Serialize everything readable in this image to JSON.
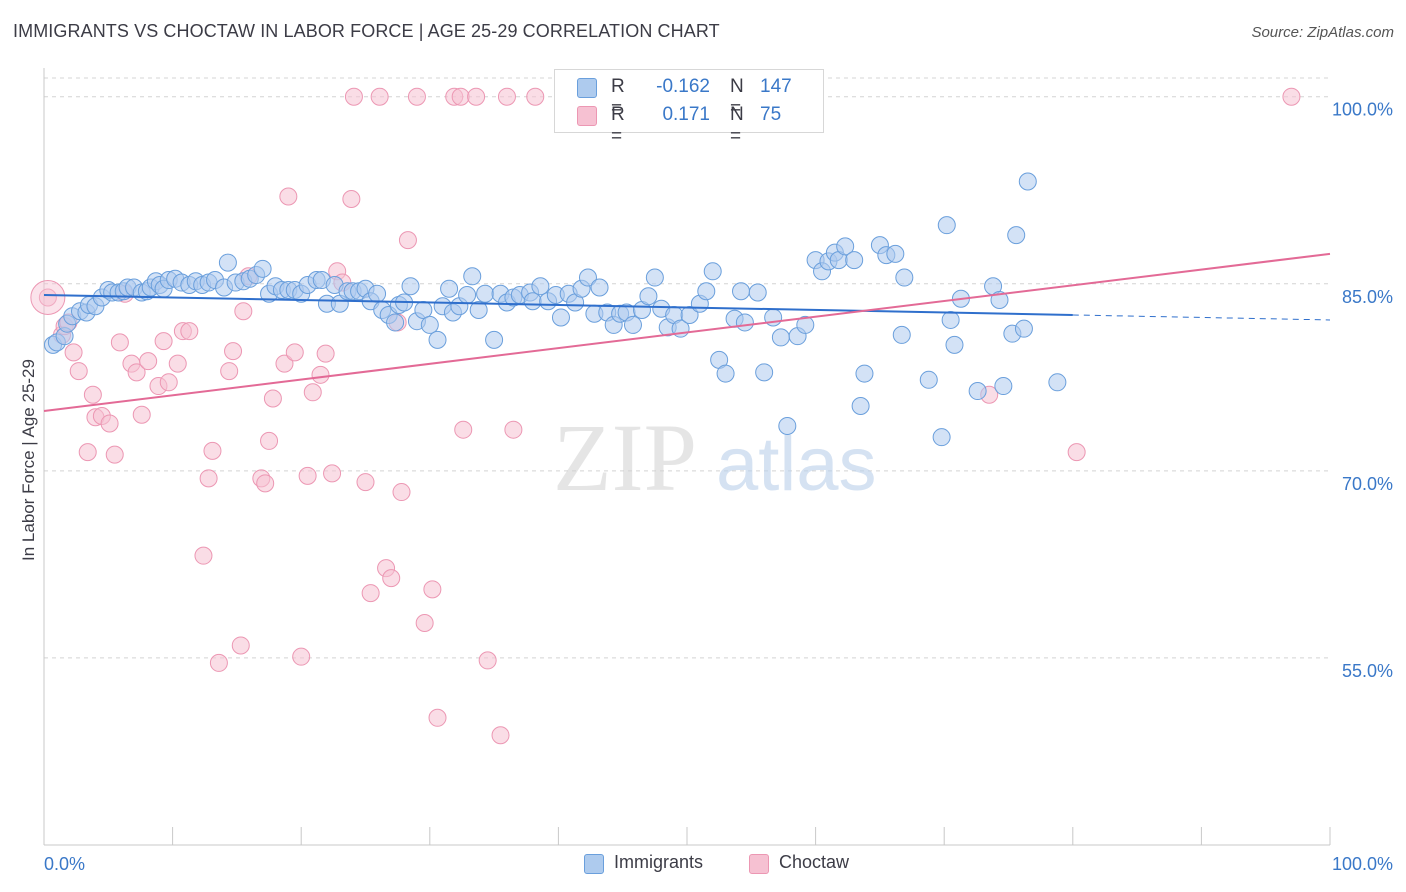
{
  "title": "IMMIGRANTS VS CHOCTAW IN LABOR FORCE | AGE 25-29 CORRELATION CHART",
  "source": "Source: ZipAtlas.com",
  "watermark": {
    "zip": "ZIP",
    "atlas": "atlas"
  },
  "colors": {
    "blue_fill": "#aecbee",
    "blue_stroke": "#6a9fdc",
    "blue_line": "#2f6fcc",
    "pink_fill": "#f6c1d2",
    "pink_stroke": "#ec97b3",
    "pink_line": "#e36a96",
    "axis_label": "#3a78c8",
    "grid": "#d4d4d4",
    "text": "#3c3c46"
  },
  "stats": [
    {
      "swatch": "blue",
      "r_label": "R =",
      "r_value": "-0.162",
      "n_label": "N =",
      "n_value": "147"
    },
    {
      "swatch": "pink",
      "r_label": "R =",
      "r_value": "0.171",
      "n_label": "N =",
      "n_value": "75"
    }
  ],
  "legend": [
    {
      "swatch": "blue",
      "label": "Immigrants"
    },
    {
      "swatch": "pink",
      "label": "Choctaw"
    }
  ],
  "chart_data": {
    "type": "scatter",
    "title": "IMMIGRANTS VS CHOCTAW IN LABOR FORCE | AGE 25-29 CORRELATION CHART",
    "xlabel": "",
    "ylabel": "In Labor Force | Age 25-29",
    "xlim": [
      0,
      100
    ],
    "ylim": [
      40,
      101.5
    ],
    "x_tick_labels": [
      "0.0%",
      "100.0%"
    ],
    "y_ticks": [
      {
        "value": 100,
        "label": "100.0%"
      },
      {
        "value": 85,
        "label": "85.0%"
      },
      {
        "value": 70,
        "label": "70.0%"
      },
      {
        "value": 55,
        "label": "55.0%"
      }
    ],
    "grid": "horizontal dashed",
    "legend_position": "bottom-center",
    "series": [
      {
        "name": "Immigrants",
        "color": "blue",
        "trendline": {
          "x": [
            0,
            80
          ],
          "y": [
            84.1,
            82.5
          ],
          "dashed_extension_to": 100
        },
        "points": [
          [
            0.7,
            80.1
          ],
          [
            1,
            80.3
          ],
          [
            1.6,
            80.8
          ],
          [
            1.8,
            81.8
          ],
          [
            2.2,
            82.4
          ],
          [
            2.8,
            82.8
          ],
          [
            3.3,
            82.7
          ],
          [
            3.5,
            83.3
          ],
          [
            4,
            83.2
          ],
          [
            4.5,
            83.9
          ],
          [
            5,
            84.5
          ],
          [
            5.3,
            84.3
          ],
          [
            5.8,
            84.3
          ],
          [
            6.2,
            84.4
          ],
          [
            6.5,
            84.7
          ],
          [
            7,
            84.7
          ],
          [
            7.6,
            84.3
          ],
          [
            8,
            84.4
          ],
          [
            8.3,
            84.7
          ],
          [
            8.7,
            85.2
          ],
          [
            9,
            84.9
          ],
          [
            9.3,
            84.6
          ],
          [
            9.7,
            85.3
          ],
          [
            10.2,
            85.4
          ],
          [
            10.7,
            85.1
          ],
          [
            11.3,
            84.9
          ],
          [
            11.8,
            85.2
          ],
          [
            12.3,
            84.9
          ],
          [
            12.8,
            85.1
          ],
          [
            13.3,
            85.3
          ],
          [
            14,
            84.7
          ],
          [
            14.3,
            86.7
          ],
          [
            14.9,
            85.1
          ],
          [
            15.5,
            85.2
          ],
          [
            16,
            85.4
          ],
          [
            16.5,
            85.7
          ],
          [
            17,
            86.2
          ],
          [
            17.5,
            84.2
          ],
          [
            18,
            84.8
          ],
          [
            18.5,
            84.5
          ],
          [
            19,
            84.5
          ],
          [
            19.5,
            84.5
          ],
          [
            20,
            84.2
          ],
          [
            20.5,
            84.9
          ],
          [
            21.2,
            85.3
          ],
          [
            21.6,
            85.3
          ],
          [
            22,
            83.4
          ],
          [
            22.6,
            84.9
          ],
          [
            23,
            83.4
          ],
          [
            23.6,
            84.4
          ],
          [
            24,
            84.4
          ],
          [
            24.5,
            84.4
          ],
          [
            25,
            84.6
          ],
          [
            25.4,
            83.6
          ],
          [
            25.9,
            84.2
          ],
          [
            26.3,
            82.9
          ],
          [
            26.8,
            82.5
          ],
          [
            27.3,
            81.9
          ],
          [
            27.6,
            83.3
          ],
          [
            28,
            83.5
          ],
          [
            28.5,
            84.8
          ],
          [
            29,
            82.0
          ],
          [
            29.5,
            82.9
          ],
          [
            30,
            81.7
          ],
          [
            30.6,
            80.5
          ],
          [
            31,
            83.2
          ],
          [
            31.5,
            84.6
          ],
          [
            31.8,
            82.7
          ],
          [
            32.3,
            83.2
          ],
          [
            32.9,
            84.1
          ],
          [
            33.3,
            85.6
          ],
          [
            33.8,
            82.9
          ],
          [
            34.3,
            84.2
          ],
          [
            35,
            80.5
          ],
          [
            35.5,
            84.2
          ],
          [
            36,
            83.5
          ],
          [
            36.5,
            83.9
          ],
          [
            37,
            84.1
          ],
          [
            37.8,
            84.3
          ],
          [
            38,
            83.6
          ],
          [
            38.6,
            84.8
          ],
          [
            39.2,
            83.6
          ],
          [
            39.8,
            84.1
          ],
          [
            40.2,
            82.3
          ],
          [
            40.8,
            84.2
          ],
          [
            41.3,
            83.5
          ],
          [
            41.8,
            84.6
          ],
          [
            42.3,
            85.5
          ],
          [
            42.8,
            82.6
          ],
          [
            43.2,
            84.7
          ],
          [
            43.8,
            82.7
          ],
          [
            44.3,
            81.7
          ],
          [
            44.8,
            82.6
          ],
          [
            45.3,
            82.7
          ],
          [
            45.8,
            81.7
          ],
          [
            46.5,
            82.9
          ],
          [
            47,
            84.0
          ],
          [
            47.5,
            85.5
          ],
          [
            48,
            83.0
          ],
          [
            48.5,
            81.5
          ],
          [
            49,
            82.5
          ],
          [
            49.5,
            81.4
          ],
          [
            50.2,
            82.5
          ],
          [
            51,
            83.4
          ],
          [
            51.5,
            84.4
          ],
          [
            52,
            86.0
          ],
          [
            52.5,
            78.9
          ],
          [
            53,
            77.8
          ],
          [
            53.7,
            82.2
          ],
          [
            54.2,
            84.4
          ],
          [
            54.5,
            81.9
          ],
          [
            55.5,
            84.3
          ],
          [
            56,
            77.9
          ],
          [
            56.7,
            82.3
          ],
          [
            57.3,
            80.7
          ],
          [
            57.8,
            73.6
          ],
          [
            58.6,
            80.8
          ],
          [
            59.2,
            81.7
          ],
          [
            60,
            86.9
          ],
          [
            60.5,
            86.0
          ],
          [
            61,
            86.8
          ],
          [
            61.5,
            87.5
          ],
          [
            61.8,
            86.9
          ],
          [
            62.3,
            88.0
          ],
          [
            63,
            86.9
          ],
          [
            63.5,
            75.2
          ],
          [
            63.8,
            77.8
          ],
          [
            65,
            88.1
          ],
          [
            65.5,
            87.3
          ],
          [
            66.2,
            87.4
          ],
          [
            66.7,
            80.9
          ],
          [
            66.9,
            85.5
          ],
          [
            68.8,
            77.3
          ],
          [
            69.8,
            72.7
          ],
          [
            70.2,
            89.7
          ],
          [
            70.5,
            82.1
          ],
          [
            70.8,
            80.1
          ],
          [
            71.3,
            83.8
          ],
          [
            72.6,
            76.4
          ],
          [
            73.8,
            84.8
          ],
          [
            74.3,
            83.7
          ],
          [
            74.6,
            76.8
          ],
          [
            75.3,
            81.0
          ],
          [
            75.6,
            88.9
          ],
          [
            76.2,
            81.4
          ],
          [
            76.5,
            93.2
          ],
          [
            78.8,
            77.1
          ]
        ]
      },
      {
        "name": "Choctaw",
        "color": "pink",
        "trendline": {
          "x": [
            0,
            100
          ],
          "y": [
            74.8,
            87.4
          ]
        },
        "points": [
          [
            0.3,
            83.9
          ],
          [
            1.4,
            80.9
          ],
          [
            1.6,
            81.6
          ],
          [
            1.9,
            81.9
          ],
          [
            2.3,
            79.5
          ],
          [
            2.7,
            78.0
          ],
          [
            3.4,
            71.5
          ],
          [
            3.8,
            76.1
          ],
          [
            4,
            74.3
          ],
          [
            4.5,
            74.4
          ],
          [
            5.1,
            73.8
          ],
          [
            5.5,
            71.3
          ],
          [
            5.9,
            80.3
          ],
          [
            6.3,
            84.2
          ],
          [
            6.8,
            78.6
          ],
          [
            7.2,
            77.9
          ],
          [
            7.6,
            74.5
          ],
          [
            8.1,
            78.8
          ],
          [
            8.9,
            76.8
          ],
          [
            9.3,
            80.4
          ],
          [
            9.7,
            77.1
          ],
          [
            10.4,
            78.6
          ],
          [
            10.8,
            81.2
          ],
          [
            11.3,
            81.2
          ],
          [
            12.4,
            63.2
          ],
          [
            12.8,
            69.4
          ],
          [
            13.1,
            71.6
          ],
          [
            13.6,
            54.6
          ],
          [
            14.4,
            78.0
          ],
          [
            14.7,
            79.6
          ],
          [
            15.3,
            56.0
          ],
          [
            15.5,
            82.8
          ],
          [
            15.9,
            85.6
          ],
          [
            16.9,
            69.4
          ],
          [
            17.2,
            69.0
          ],
          [
            17.5,
            72.4
          ],
          [
            17.8,
            75.8
          ],
          [
            18.7,
            78.6
          ],
          [
            19,
            92.0
          ],
          [
            19.5,
            79.5
          ],
          [
            20,
            55.1
          ],
          [
            20.5,
            69.6
          ],
          [
            20.9,
            76.3
          ],
          [
            21.5,
            77.7
          ],
          [
            21.9,
            79.4
          ],
          [
            22.4,
            69.8
          ],
          [
            22.8,
            86.0
          ],
          [
            23.2,
            85.1
          ],
          [
            23.9,
            91.8
          ],
          [
            24.1,
            100.0
          ],
          [
            25,
            69.1
          ],
          [
            25.4,
            60.2
          ],
          [
            26.1,
            100.0
          ],
          [
            26.6,
            62.2
          ],
          [
            27,
            61.4
          ],
          [
            27.5,
            81.9
          ],
          [
            27.8,
            68.3
          ],
          [
            28.3,
            88.5
          ],
          [
            29,
            100.0
          ],
          [
            29.6,
            57.8
          ],
          [
            30.2,
            60.5
          ],
          [
            30.6,
            50.2
          ],
          [
            31.9,
            100.0
          ],
          [
            32.4,
            100.0
          ],
          [
            32.6,
            73.3
          ],
          [
            33.6,
            100.0
          ],
          [
            34.5,
            54.8
          ],
          [
            35.5,
            48.8
          ],
          [
            36,
            100.0
          ],
          [
            36.5,
            73.3
          ],
          [
            38.2,
            100.0
          ],
          [
            73.5,
            76.1
          ],
          [
            80.3,
            71.5
          ],
          [
            97,
            100.0
          ]
        ]
      }
    ]
  }
}
